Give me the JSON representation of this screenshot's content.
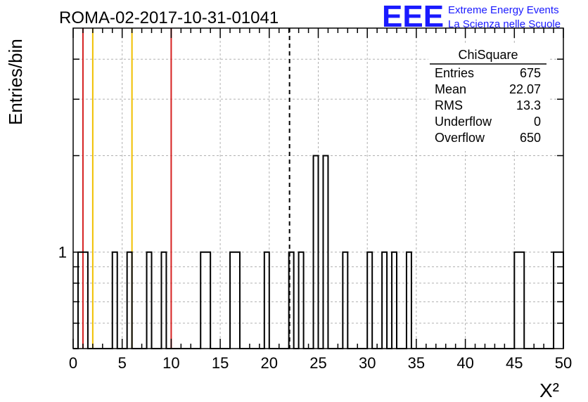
{
  "header": {
    "run_title": "ROMA-02-2017-10-31-01041",
    "logo_text": "EEE",
    "logo_line1": "Extreme Energy Events",
    "logo_line2": "La Scienza nelle Scuole",
    "logo_color": "#1a1aff"
  },
  "stats_box": {
    "title": "ChiSquare",
    "rows": [
      {
        "label": "Entries",
        "value": "675"
      },
      {
        "label": "Mean",
        "value": "22.07"
      },
      {
        "label": "RMS",
        "value": "13.3"
      },
      {
        "label": "Underflow",
        "value": "0"
      },
      {
        "label": "Overflow",
        "value": "650"
      }
    ]
  },
  "chart_data": {
    "type": "bar",
    "subtype": "step-histogram",
    "ylabel": "Entries/bin",
    "xlabel": "X²",
    "xlim": [
      0,
      50
    ],
    "ylim": [
      0.5,
      5
    ],
    "y_scale": "log",
    "grid": true,
    "bin_width": 0.5,
    "x_tick_labels": [
      "0",
      "5",
      "10",
      "15",
      "20",
      "25",
      "30",
      "35",
      "40",
      "45",
      "50"
    ],
    "y_tick_labels": [
      "1"
    ],
    "bins": [
      {
        "x": 0.5,
        "count": 1
      },
      {
        "x": 1.0,
        "count": 1
      },
      {
        "x": 4.0,
        "count": 1
      },
      {
        "x": 5.5,
        "count": 1
      },
      {
        "x": 7.5,
        "count": 1
      },
      {
        "x": 9.0,
        "count": 1
      },
      {
        "x": 13.0,
        "count": 1
      },
      {
        "x": 13.5,
        "count": 1
      },
      {
        "x": 16.0,
        "count": 1
      },
      {
        "x": 16.5,
        "count": 1
      },
      {
        "x": 19.5,
        "count": 1
      },
      {
        "x": 22.0,
        "count": 1
      },
      {
        "x": 23.0,
        "count": 1
      },
      {
        "x": 24.5,
        "count": 2
      },
      {
        "x": 25.5,
        "count": 2
      },
      {
        "x": 27.5,
        "count": 1
      },
      {
        "x": 30.0,
        "count": 1
      },
      {
        "x": 31.5,
        "count": 1
      },
      {
        "x": 32.5,
        "count": 1
      },
      {
        "x": 34.0,
        "count": 1
      },
      {
        "x": 45.0,
        "count": 1
      },
      {
        "x": 45.5,
        "count": 1
      },
      {
        "x": 49.0,
        "count": 1
      },
      {
        "x": 49.5,
        "count": 1
      }
    ],
    "reference_lines": [
      {
        "x": 1.0,
        "color": "#d62020",
        "style": "solid"
      },
      {
        "x": 2.0,
        "color": "#f0c000",
        "style": "solid"
      },
      {
        "x": 6.0,
        "color": "#f0c000",
        "style": "solid"
      },
      {
        "x": 10.0,
        "color": "#d62020",
        "style": "solid"
      },
      {
        "x": 22.07,
        "color": "#000000",
        "style": "dashed"
      }
    ]
  }
}
